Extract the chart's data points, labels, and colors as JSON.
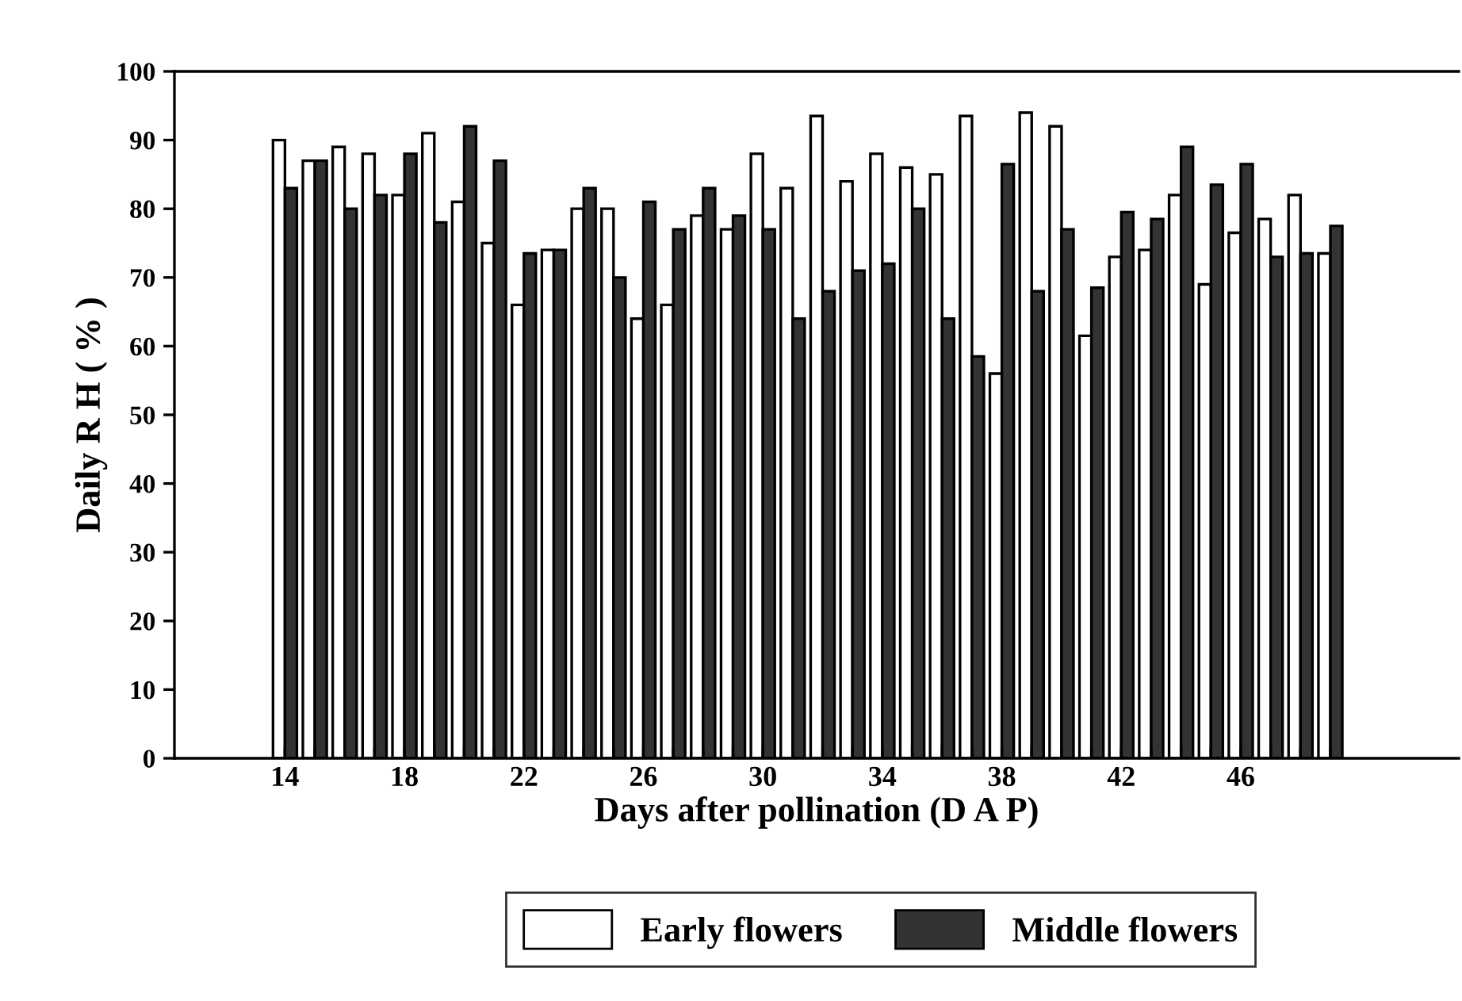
{
  "chart_data": {
    "type": "bar",
    "xlabel": "Days after pollination (D A P)",
    "ylabel": "Daily R H ( % )",
    "categories": [
      "14",
      null,
      null,
      null,
      "18",
      null,
      null,
      null,
      "22",
      null,
      null,
      null,
      "26",
      null,
      null,
      null,
      "30",
      null,
      null,
      null,
      "34",
      null,
      null,
      null,
      "38",
      null,
      null,
      null,
      "42",
      null,
      null,
      null,
      "46",
      null,
      null,
      null
    ],
    "series": [
      {
        "name": "Early flowers",
        "color": "#ffffff",
        "values": [
          90,
          87,
          89,
          88,
          82,
          91,
          81,
          75,
          66,
          74,
          80,
          80,
          64,
          66,
          79,
          77,
          88,
          83,
          93.5,
          84,
          88,
          86,
          85,
          93.5,
          56,
          94,
          92,
          61.5,
          73,
          74,
          82,
          69,
          76.5,
          78.5,
          82,
          73.5
        ]
      },
      {
        "name": "Middle flowers",
        "color": "#333333",
        "values": [
          83,
          87,
          80,
          82,
          88,
          78,
          92,
          87,
          73.5,
          74,
          83,
          70,
          81,
          77,
          83,
          79,
          77,
          64,
          68,
          71,
          72,
          80,
          64,
          58.5,
          86.5,
          68,
          77,
          68.5,
          79.5,
          78.5,
          89,
          83.5,
          86.5,
          73,
          73.5,
          77.5
        ]
      }
    ],
    "ylim": [
      0,
      100
    ],
    "yticks": [
      0,
      10,
      20,
      30,
      40,
      50,
      60,
      70,
      80,
      90,
      100
    ],
    "grid": false,
    "legend": "bottom"
  }
}
